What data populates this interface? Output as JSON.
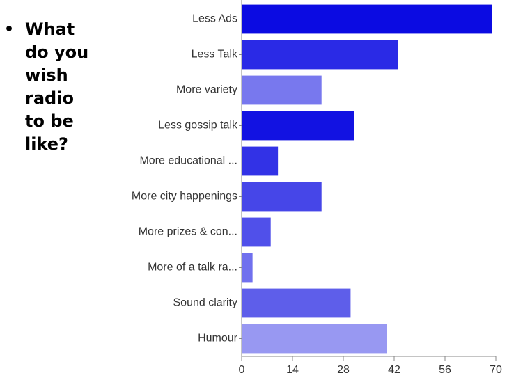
{
  "question": "What do you wish radio to be like?",
  "chart_data": {
    "type": "hbar",
    "categories": [
      "Less Ads",
      "Less Talk",
      "More variety",
      "Less gossip talk",
      "More educational ...",
      "More city happenings",
      "More prizes & con...",
      "More of a talk ra...",
      "Sound clarity",
      "Humour"
    ],
    "values": [
      69,
      43,
      22,
      31,
      10,
      22,
      8,
      3,
      30,
      40
    ],
    "colors": [
      "#0b0be2",
      "#2a2ae6",
      "#7878ee",
      "#1212e2",
      "#3232e6",
      "#4646e8",
      "#5050ea",
      "#7070ee",
      "#5e5eea",
      "#9898f2"
    ],
    "xlim": [
      0,
      70
    ],
    "xticks": [
      0,
      14,
      28,
      42,
      56,
      70
    ]
  }
}
